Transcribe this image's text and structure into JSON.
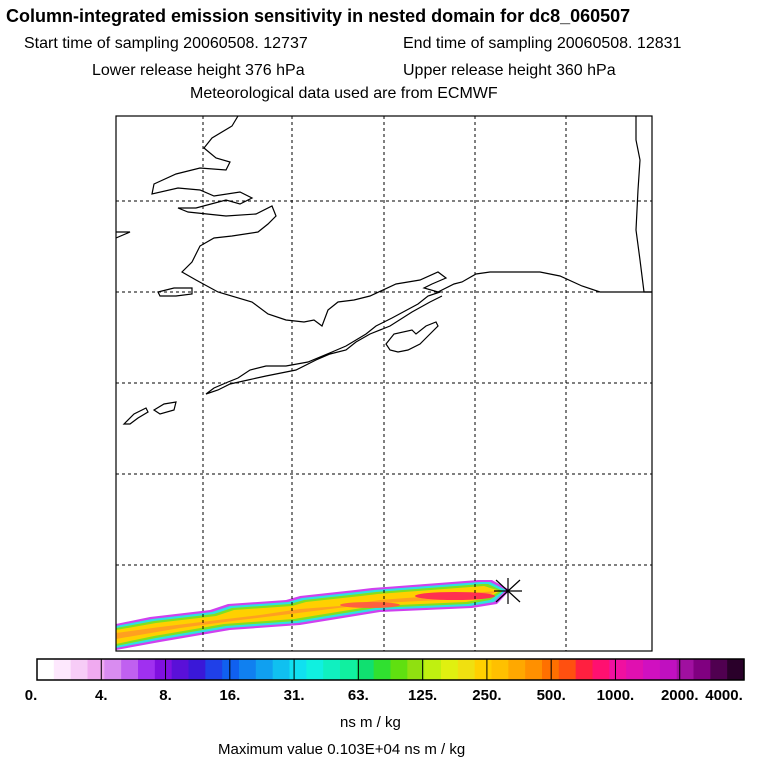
{
  "title": "Column-integrated emission sensitivity in nested domain for dc8_060507",
  "sampling": {
    "start_label": "Start time of sampling 20060508. 12737",
    "end_label": "End time of sampling 20060508. 12831"
  },
  "release": {
    "lower_label": "Lower release height  376 hPa",
    "upper_label": "Upper release height  360 hPa"
  },
  "met_label": "Meteorological data used are from ECMWF",
  "colorbar": {
    "ticks": [
      "0.",
      "4.",
      "8.",
      "16.",
      "31.",
      "63.",
      "125.",
      "250.",
      "500.",
      "1000.",
      "2000.",
      "4000."
    ],
    "colors": [
      "#ffffff",
      "#fde8fd",
      "#f7ccf7",
      "#f0aaf0",
      "#d98cf0",
      "#c060f0",
      "#a030f0",
      "#8010e0",
      "#5a10d8",
      "#3a18d8",
      "#2040e8",
      "#1060f0",
      "#1080f0",
      "#10a0f0",
      "#10c0f0",
      "#10e0f0",
      "#10f0e0",
      "#10f0c0",
      "#10f0a0",
      "#10e070",
      "#30e030",
      "#60e010",
      "#90e010",
      "#c0f010",
      "#e0f010",
      "#f0e010",
      "#ffd000",
      "#ffc000",
      "#ffa800",
      "#ff9000",
      "#ff7000",
      "#ff5010",
      "#ff2040",
      "#ff1070",
      "#f010a0",
      "#e010b0",
      "#d010c0",
      "#c010c0",
      "#a010a0",
      "#800080",
      "#500050",
      "#2a002a"
    ],
    "units": "ns m / kg"
  },
  "max_label": "Maximum value  0.103E+04 ns m / kg",
  "plume": {
    "segments": [
      {
        "lon": 0.0,
        "lat": 0.15,
        "value": 300
      },
      {
        "lon": 0.16,
        "lat": 0.18,
        "value": 250
      },
      {
        "lon": 0.3,
        "lat": 0.22,
        "value": 280
      },
      {
        "lon": 0.45,
        "lat": 0.27,
        "value": 320
      },
      {
        "lon": 0.6,
        "lat": 0.32,
        "value": 500
      },
      {
        "lon": 0.73,
        "lat": 0.37,
        "value": 1030
      }
    ],
    "release_marker": "release-point-star"
  }
}
